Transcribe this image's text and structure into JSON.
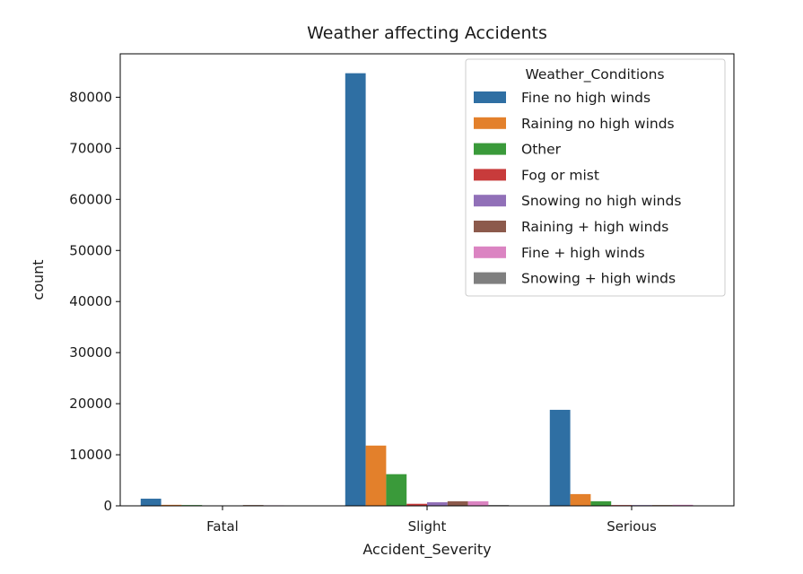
{
  "chart_data": {
    "type": "bar",
    "title": "Weather affecting Accidents",
    "xlabel": "Accident_Severity",
    "ylabel": "count",
    "categories": [
      "Fatal",
      "Slight",
      "Serious"
    ],
    "ylim": [
      0,
      88500
    ],
    "yticks": [
      0,
      10000,
      20000,
      30000,
      40000,
      50000,
      60000,
      70000,
      80000
    ],
    "grid": false,
    "legend": {
      "title": "Weather_Conditions",
      "position": "top-right"
    },
    "series": [
      {
        "name": "Fine no high winds",
        "color": "#2f6fa3",
        "values": [
          1400,
          84700,
          18800
        ]
      },
      {
        "name": "Raining no high winds",
        "color": "#e3802b",
        "values": [
          200,
          11800,
          2300
        ]
      },
      {
        "name": "Other",
        "color": "#3a9a3a",
        "values": [
          150,
          6200,
          900
        ]
      },
      {
        "name": "Fog or mist",
        "color": "#c83b3b",
        "values": [
          20,
          400,
          150
        ]
      },
      {
        "name": "Snowing no high winds",
        "color": "#9170b8",
        "values": [
          20,
          700,
          150
        ]
      },
      {
        "name": "Raining + high winds",
        "color": "#8c5a4c",
        "values": [
          150,
          900,
          150
        ]
      },
      {
        "name": "Fine + high winds",
        "color": "#db84c2",
        "values": [
          100,
          900,
          200
        ]
      },
      {
        "name": "Snowing + high winds",
        "color": "#7f7f7f",
        "values": [
          10,
          150,
          50
        ]
      }
    ]
  }
}
